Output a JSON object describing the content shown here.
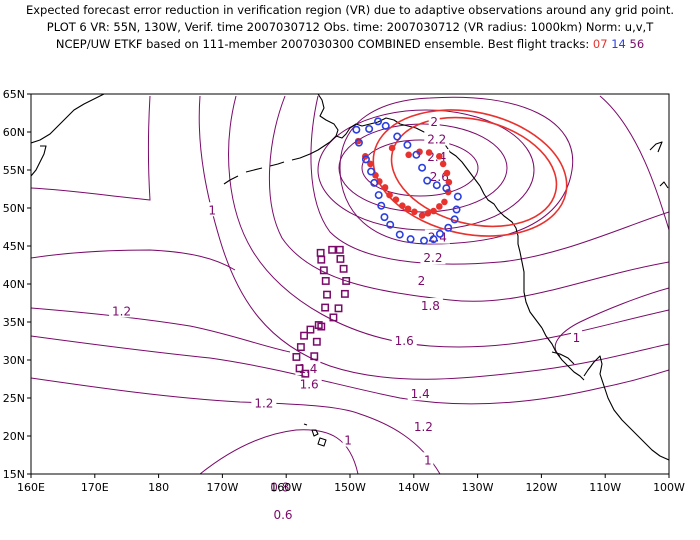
{
  "header": {
    "line1": "Expected forecast error reduction in verification region (VR) due to adaptive observations around any grid point.",
    "line2": "PLOT 6 VR: 55N, 130W, Verif. time 2007030712 Obs. time: 2007030712 (VR radius: 1000km) Norm: u,v,T",
    "line3_prefix": "NCEP/UW ETKF based on 111-member 2007030300 COMBINED ensemble.  Best flight tracks: ",
    "track1": "07",
    "track2": "14",
    "track3": "56"
  },
  "colors": {
    "contour": "#7a0a6a",
    "verification_region": "#e8322e",
    "track_red": "#e8322e",
    "track_blue": "#2a3fe0",
    "track_purple": "#7a0a6a",
    "coast": "#000000"
  },
  "axes": {
    "lon_ticks": [
      "160E",
      "170E",
      "180",
      "170W",
      "160W",
      "150W",
      "140W",
      "130W",
      "120W",
      "110W",
      "100W"
    ],
    "lat_ticks": [
      "15N",
      "20N",
      "25N",
      "30N",
      "35N",
      "40N",
      "45N",
      "50N",
      "55N",
      "60N",
      "65N"
    ]
  },
  "contour_labels": [
    {
      "text": "2",
      "lon": -136.8,
      "lat": 61.3
    },
    {
      "text": "2.2",
      "lon": -136.4,
      "lat": 59.0
    },
    {
      "text": "2.4",
      "lon": -136.4,
      "lat": 56.7
    },
    {
      "text": "2.6",
      "lon": -136.0,
      "lat": 54.1
    },
    {
      "text": "2.4",
      "lon": -136.3,
      "lat": 46.1
    },
    {
      "text": "2.2",
      "lon": -137.0,
      "lat": 43.4
    },
    {
      "text": "2",
      "lon": -138.8,
      "lat": 40.4
    },
    {
      "text": "1.8",
      "lon": -137.4,
      "lat": 37.1
    },
    {
      "text": "1.6",
      "lon": -141.5,
      "lat": 32.5
    },
    {
      "text": "1.4",
      "lon": -139.0,
      "lat": 25.5
    },
    {
      "text": "1.2",
      "lon": -138.5,
      "lat": 21.2
    },
    {
      "text": "1",
      "lon": -137.8,
      "lat": 16.8
    },
    {
      "text": "1",
      "lon": -171.6,
      "lat": 49.7
    },
    {
      "text": "1.2",
      "lon": -185.8,
      "lat": 36.4
    },
    {
      "text": "1.2",
      "lon": -163.5,
      "lat": 24.3
    },
    {
      "text": "1",
      "lon": -150.3,
      "lat": 19.4
    },
    {
      "text": "0.8",
      "lon": -161.0,
      "lat": 13.2
    },
    {
      "text": "0.6",
      "lon": -160.5,
      "lat": 9.6
    },
    {
      "text": "1.6",
      "lon": -156.4,
      "lat": 26.8
    },
    {
      "text": "1.4",
      "lon": -156.6,
      "lat": 28.8
    },
    {
      "text": "1",
      "lon": -114.5,
      "lat": 32.9
    }
  ],
  "tracks": {
    "red": [
      [
        -148.7,
        58.8
      ],
      [
        -147.6,
        56.8
      ],
      [
        -146.8,
        55.8
      ],
      [
        -146.0,
        54.3
      ],
      [
        -145.4,
        53.5
      ],
      [
        -144.5,
        52.7
      ],
      [
        -143.8,
        51.7
      ],
      [
        -142.8,
        51.1
      ],
      [
        -141.8,
        50.3
      ],
      [
        -140.9,
        49.9
      ],
      [
        -139.9,
        49.5
      ],
      [
        -138.7,
        49.0
      ],
      [
        -137.8,
        49.3
      ],
      [
        -136.9,
        49.6
      ],
      [
        -136.0,
        50.2
      ],
      [
        -135.2,
        50.8
      ],
      [
        -134.6,
        52.1
      ],
      [
        -134.5,
        53.4
      ],
      [
        -134.8,
        54.6
      ],
      [
        -135.4,
        55.8
      ],
      [
        -136.0,
        56.8
      ],
      [
        -137.6,
        57.3
      ],
      [
        -139.1,
        57.4
      ],
      [
        -140.8,
        57.0
      ],
      [
        -143.4,
        57.9
      ]
    ],
    "blue": [
      [
        -149.0,
        60.3
      ],
      [
        -148.6,
        58.6
      ],
      [
        -147.5,
        56.4
      ],
      [
        -146.7,
        54.8
      ],
      [
        -146.2,
        53.3
      ],
      [
        -145.5,
        51.7
      ],
      [
        -145.1,
        50.3
      ],
      [
        -144.6,
        48.8
      ],
      [
        -143.7,
        47.8
      ],
      [
        -142.2,
        46.5
      ],
      [
        -140.5,
        45.9
      ],
      [
        -138.4,
        45.7
      ],
      [
        -136.9,
        45.9
      ],
      [
        -135.9,
        46.6
      ],
      [
        -134.6,
        47.4
      ],
      [
        -133.6,
        48.5
      ],
      [
        -133.3,
        49.8
      ],
      [
        -133.1,
        51.5
      ],
      [
        -134.9,
        52.6
      ],
      [
        -136.4,
        53.0
      ],
      [
        -137.9,
        53.6
      ],
      [
        -138.7,
        55.3
      ],
      [
        -139.6,
        57.0
      ],
      [
        -141.0,
        58.3
      ],
      [
        -142.6,
        59.4
      ],
      [
        -144.4,
        60.8
      ],
      [
        -145.6,
        61.4
      ],
      [
        -147.0,
        60.4
      ]
    ],
    "purple": [
      [
        -154.6,
        44.1
      ],
      [
        -152.8,
        44.5
      ],
      [
        -151.6,
        44.5
      ],
      [
        -151.5,
        43.3
      ],
      [
        -151.0,
        42.0
      ],
      [
        -150.6,
        40.4
      ],
      [
        -150.8,
        38.7
      ],
      [
        -151.8,
        36.8
      ],
      [
        -152.6,
        35.6
      ],
      [
        -154.9,
        34.6
      ],
      [
        -156.2,
        34.0
      ],
      [
        -157.2,
        33.2
      ],
      [
        -157.7,
        31.7
      ],
      [
        -158.4,
        30.4
      ],
      [
        -157.9,
        28.9
      ],
      [
        -157.0,
        28.2
      ],
      [
        -155.6,
        30.5
      ],
      [
        -155.2,
        32.4
      ],
      [
        -154.5,
        34.4
      ],
      [
        -153.9,
        36.9
      ],
      [
        -153.6,
        38.6
      ],
      [
        -153.8,
        40.4
      ],
      [
        -154.1,
        41.8
      ],
      [
        -154.5,
        43.2
      ]
    ]
  }
}
